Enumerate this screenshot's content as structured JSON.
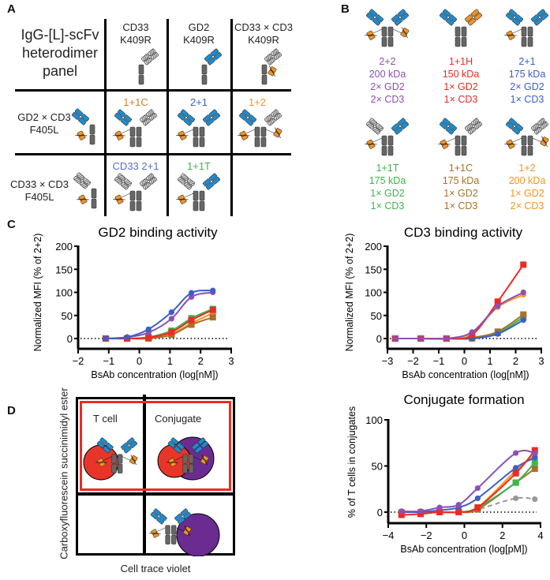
{
  "colors": {
    "gd2_arm": "#1a8dd3",
    "cd3_arm": "#f39320",
    "cd33_arm": "#d9d9d9",
    "fc": "#666666",
    "t_cell": "#e8352a",
    "target_cell": "#6a2c91",
    "gate": "#ee2a24"
  },
  "panel_a": {
    "label": "A",
    "title_lines": [
      "IgG-[L]-scFv",
      "heterodimer",
      "panel"
    ],
    "columns": [
      {
        "lines": [
          "CD33",
          "K409R"
        ],
        "arms": {
          "half": "right",
          "r": "CD33"
        }
      },
      {
        "lines": [
          "GD2",
          "K409R"
        ],
        "arms": {
          "half": "right",
          "r": "GD2"
        }
      },
      {
        "lines": [
          "CD33 × CD3",
          "K409R"
        ],
        "arms": {
          "half": "right",
          "r": "CD33",
          "scfv_r": true
        }
      }
    ],
    "rows": [
      {
        "lines": [
          "GD2 × CD3",
          "F405L"
        ],
        "arms": {
          "half": "left",
          "l": "GD2",
          "scfv_l": true
        }
      },
      {
        "lines": [
          "CD33 × CD3",
          "F405L"
        ],
        "arms": {
          "half": "left",
          "l": "CD33",
          "scfv_l": true
        }
      }
    ],
    "cells": [
      {
        "label": "1+1C",
        "color": "#c8802a",
        "arms": {
          "l": "GD2",
          "r": "CD33",
          "scfv_l": true
        }
      },
      {
        "label": "2+1",
        "color": "#3a5fc8",
        "arms": {
          "l": "GD2",
          "r": "GD2",
          "scfv_l": true
        }
      },
      {
        "label": "1+2",
        "color": "#f7941d",
        "arms": {
          "l": "GD2",
          "r": "CD33",
          "scfv_l": true,
          "scfv_r": true
        }
      },
      {
        "label": "CD33 2+1",
        "color": "#5a6fc8",
        "arms": {
          "l": "CD33",
          "r": "CD33",
          "scfv_l": true
        }
      },
      {
        "label": "1+1T",
        "color": "#3cb54a",
        "arms": {
          "l": "CD33",
          "r": "GD2",
          "scfv_l": true
        }
      }
    ]
  },
  "panel_b": {
    "label": "B",
    "formats": [
      {
        "name": "2+2",
        "mw": "200 kDa",
        "gd2": "2× GD2",
        "cd3": "2× CD3",
        "color": "#8e4fb5",
        "arms": {
          "l": "GD2",
          "r": "GD2",
          "scfv_l": true,
          "scfv_r": true
        }
      },
      {
        "name": "1+1H",
        "mw": "150 kDa",
        "gd2": "1× GD2",
        "cd3": "1× CD3",
        "color": "#ee2a24",
        "arms": {
          "l": "GD2",
          "r": "CD3"
        }
      },
      {
        "name": "2+1",
        "mw": "175 kDa",
        "gd2": "2× GD2",
        "cd3": "1× CD3",
        "color": "#3a5fc8",
        "arms": {
          "l": "GD2",
          "r": "GD2",
          "scfv_l": true
        }
      },
      {
        "name": "1+1T",
        "mw": "175 kDa",
        "gd2": "1× GD2",
        "cd3": "1× CD3",
        "color": "#3cb54a",
        "arms": {
          "l": "CD33",
          "r": "GD2",
          "scfv_l": true
        }
      },
      {
        "name": "1+1C",
        "mw": "175 kDa",
        "gd2": "1× GD2",
        "cd3": "1× CD3",
        "color": "#a8712a",
        "arms": {
          "l": "GD2",
          "r": "CD33",
          "scfv_l": true
        }
      },
      {
        "name": "1+2",
        "mw": "200 kDa",
        "gd2": "1× GD2",
        "cd3": "2× CD3",
        "color": "#f7941d",
        "arms": {
          "l": "GD2",
          "r": "CD33",
          "scfv_l": true,
          "scfv_r": true
        }
      }
    ]
  },
  "panel_c": {
    "label": "C"
  },
  "panel_d": {
    "label": "D",
    "t_cell_label": "T cell",
    "conjugate_label": "Conjugate",
    "y_axis_label": "Carboxyfluorescein succinimidyl ester",
    "x_axis_label": "Cell trace violet"
  },
  "chart_data": [
    {
      "type": "line",
      "title": "GD2 binding activity",
      "xlabel": "BsAb concentration (log[nM])",
      "ylabel": "Normalized MFI (% of 2+2)",
      "xlim": [
        -2,
        3
      ],
      "ylim": [
        -20,
        200
      ],
      "xticks": [
        -2,
        -1,
        0,
        1,
        2,
        3
      ],
      "yticks": [
        0,
        50,
        100,
        150,
        200
      ],
      "grid": false,
      "reference_line": 0,
      "x": [
        -1.1,
        -0.4,
        0.3,
        1.05,
        1.7,
        2.4
      ],
      "series": [
        {
          "color": "#f7941d",
          "marker": "square",
          "values": [
            0,
            0,
            1,
            10,
            33,
            55
          ]
        },
        {
          "color": "#a8712a",
          "marker": "square",
          "values": [
            0,
            0,
            0,
            8,
            30,
            46
          ]
        },
        {
          "color": "#3cb54a",
          "marker": "square",
          "values": [
            0,
            0,
            3,
            17,
            44,
            64
          ]
        },
        {
          "color": "#ee2a24",
          "marker": "square",
          "values": [
            0,
            0,
            2,
            14,
            40,
            62
          ]
        },
        {
          "color": "#8e4fb5",
          "marker": "circle",
          "values": [
            0,
            3,
            13,
            43,
            90,
            100
          ]
        },
        {
          "color": "#3a5fc8",
          "marker": "circle",
          "values": [
            0,
            3,
            20,
            57,
            99,
            104
          ]
        }
      ]
    },
    {
      "type": "line",
      "title": "CD3 binding activity",
      "xlabel": "BsAb concentration (log[nM])",
      "ylabel": "Normalized MFI (% of 2+2)",
      "xlim": [
        -3,
        3
      ],
      "ylim": [
        -20,
        200
      ],
      "xticks": [
        -3,
        -2,
        -1,
        0,
        1,
        2,
        3
      ],
      "yticks": [
        0,
        50,
        100,
        150,
        200
      ],
      "grid": false,
      "reference_line": 0,
      "x": [
        -2.7,
        -1.7,
        -0.7,
        0.3,
        1.3,
        2.3
      ],
      "series": [
        {
          "color": "#3cb54a",
          "marker": "square",
          "values": [
            0,
            0,
            0,
            0,
            12,
            46
          ]
        },
        {
          "color": "#a8712a",
          "marker": "square",
          "values": [
            0,
            0,
            0,
            2,
            15,
            52
          ]
        },
        {
          "color": "#3a5fc8",
          "marker": "circle",
          "values": [
            0,
            0,
            0,
            0,
            10,
            40
          ]
        },
        {
          "color": "#f7941d",
          "marker": "circle",
          "values": [
            0,
            0,
            0,
            12,
            68,
            95
          ]
        },
        {
          "color": "#ee2a24",
          "marker": "square",
          "values": [
            0,
            0,
            0,
            8,
            80,
            160
          ]
        },
        {
          "color": "#8e4fb5",
          "marker": "circle",
          "values": [
            0,
            0,
            0,
            14,
            70,
            100
          ]
        }
      ]
    },
    {
      "type": "line",
      "title": "Conjugate formation",
      "xlabel": "BsAb concentration (log[pM])",
      "ylabel": "% of T cells in conjugates",
      "xlim": [
        -4,
        4
      ],
      "ylim": [
        -10,
        100
      ],
      "xticks": [
        -4,
        -2,
        0,
        2,
        4
      ],
      "yticks": [
        0,
        50,
        100
      ],
      "grid": false,
      "reference_line": 0,
      "x": [
        -3.3,
        -2.3,
        -1.3,
        -0.3,
        0.7,
        2.7,
        3.7
      ],
      "series": [
        {
          "color": "#999999",
          "marker": "circle",
          "dashed": true,
          "values": [
            0,
            0,
            0,
            0,
            3,
            15,
            14
          ]
        },
        {
          "color": "#a8712a",
          "marker": "square",
          "values": [
            0,
            0,
            0,
            0,
            3,
            32,
            47
          ]
        },
        {
          "color": "#3cb54a",
          "marker": "square",
          "values": [
            0,
            0,
            0,
            0,
            5,
            32,
            54
          ]
        },
        {
          "color": "#f7941d",
          "marker": "square",
          "values": [
            0,
            0,
            0,
            0,
            5,
            45,
            62
          ]
        },
        {
          "color": "#3a5fc8",
          "marker": "circle",
          "values": [
            0,
            0,
            2,
            5,
            15,
            48,
            59
          ]
        },
        {
          "color": "#ee2a24",
          "marker": "square",
          "values": [
            -3,
            -2,
            0,
            0,
            5,
            42,
            67
          ]
        },
        {
          "color": "#8e4fb5",
          "marker": "circle",
          "values": [
            1,
            1,
            5,
            8,
            26,
            64,
            64
          ]
        }
      ]
    }
  ]
}
